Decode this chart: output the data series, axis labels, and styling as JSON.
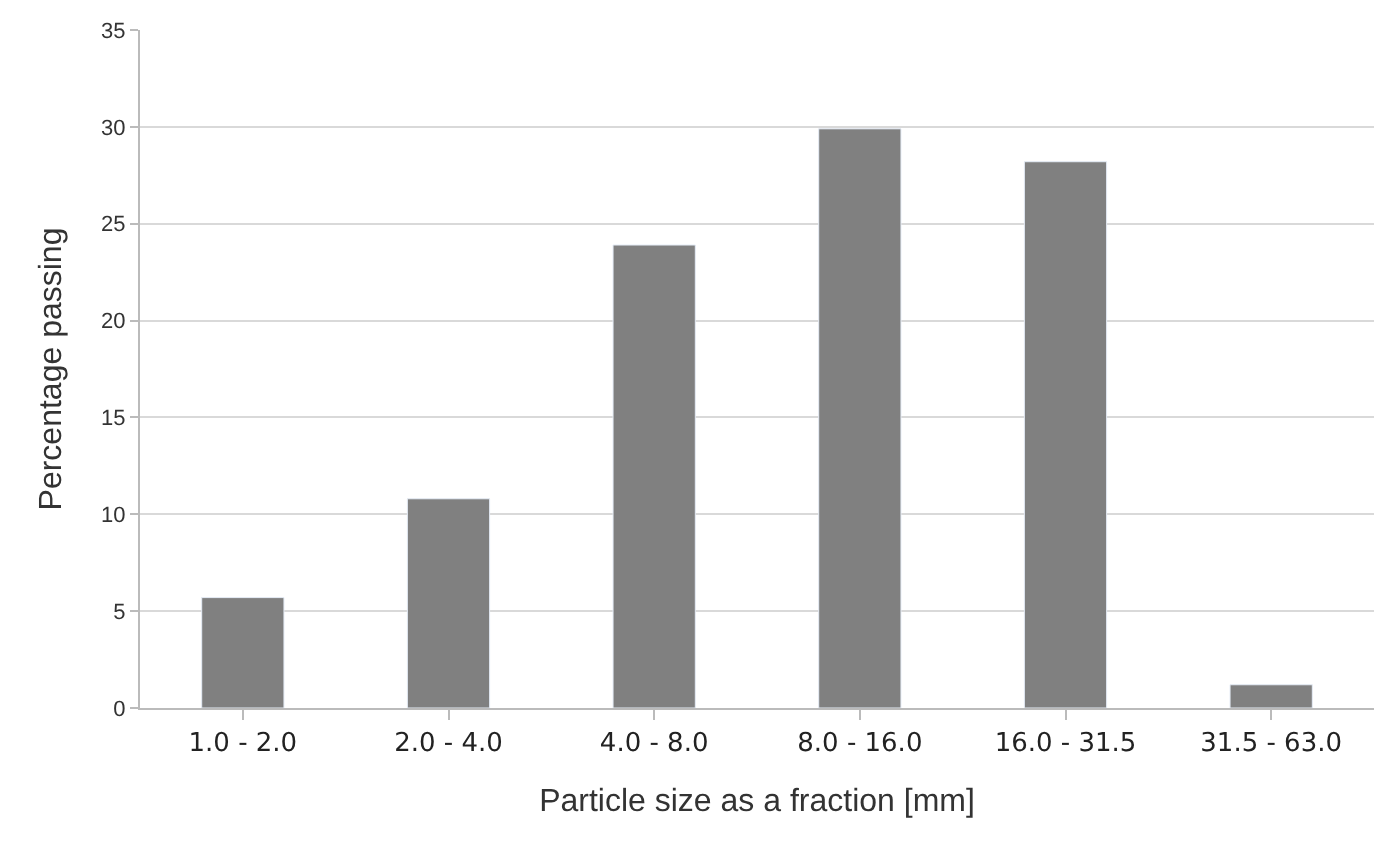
{
  "chart_data": {
    "type": "bar",
    "xlabel": "Particle size as a fraction [mm]",
    "ylabel": "Percentage passing",
    "categories": [
      "1.0 - 2.0",
      "2.0 - 4.0",
      "4.0 - 8.0",
      "8.0 - 16.0",
      "16.0 - 31.5",
      "31.5 - 63.0"
    ],
    "values": [
      5.7,
      10.8,
      23.9,
      29.9,
      28.2,
      1.2
    ],
    "color": "#808080",
    "ylim": [
      0,
      35
    ],
    "yticks": [
      0,
      5,
      10,
      15,
      20,
      25,
      30,
      35
    ],
    "grid": "y"
  }
}
